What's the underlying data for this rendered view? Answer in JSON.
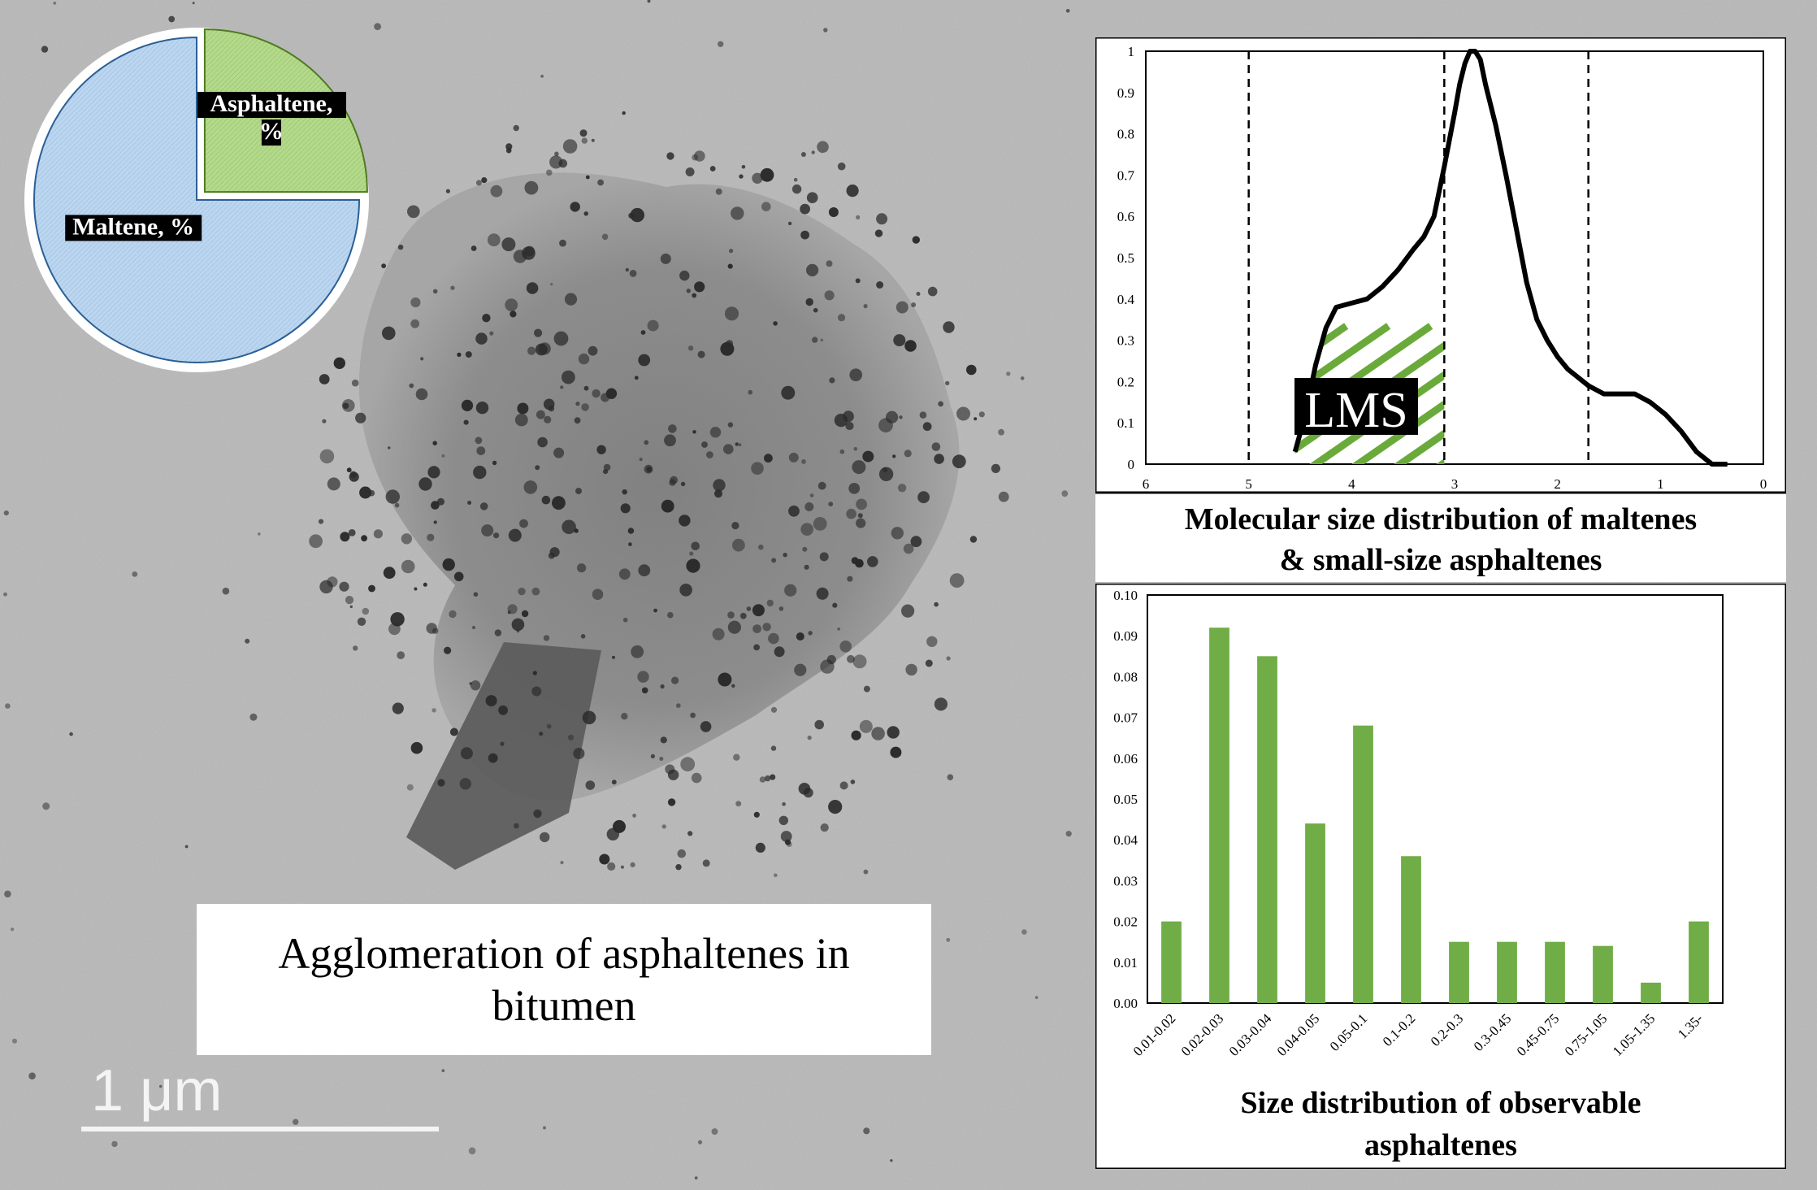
{
  "pie": {
    "slices": [
      {
        "label_lines": [
          "Asphaltene,",
          "%"
        ],
        "value": 25,
        "color": "#b5d98c",
        "edge": "#4f7a1f"
      },
      {
        "label_lines": [
          "Maltene, %"
        ],
        "value": 75,
        "color": "#bcd6f0",
        "edge": "#2b5f96"
      }
    ]
  },
  "caption": "Agglomeration of asphaltenes in bitumen",
  "scale_bar": {
    "label": "1 μm"
  },
  "chart_data": [
    {
      "type": "line",
      "xlabel_lines": [
        "Molecular size distribution of maltenes",
        "& small-size asphaltenes"
      ],
      "xlim": [
        6,
        0
      ],
      "ylim": [
        0,
        1
      ],
      "x_ticks": [
        "6",
        "5",
        "4",
        "3",
        "2",
        "1",
        "0"
      ],
      "y_ticks": [
        "0",
        "0.1",
        "0.2",
        "0.3",
        "0.4",
        "0.5",
        "0.6",
        "0.7",
        "0.8",
        "0.9",
        "1"
      ],
      "vlines": [
        5,
        3.1,
        1.7
      ],
      "shaded_region": {
        "x": [
          5,
          3.1
        ],
        "label": "LMS",
        "color": "#6aaa3a"
      },
      "series": [
        {
          "x": [
            4.55,
            4.45,
            4.35,
            4.25,
            4.15,
            4.0,
            3.85,
            3.7,
            3.55,
            3.4,
            3.3,
            3.2,
            3.1,
            3.0,
            2.95,
            2.9,
            2.85,
            2.8,
            2.75,
            2.7,
            2.6,
            2.5,
            2.4,
            2.3,
            2.2,
            2.1,
            2.0,
            1.9,
            1.8,
            1.7,
            1.55,
            1.4,
            1.25,
            1.1,
            0.95,
            0.8,
            0.65,
            0.5,
            0.35
          ],
          "y": [
            0.03,
            0.12,
            0.24,
            0.33,
            0.38,
            0.39,
            0.4,
            0.43,
            0.47,
            0.52,
            0.55,
            0.6,
            0.72,
            0.85,
            0.92,
            0.97,
            1.0,
            1.0,
            0.98,
            0.92,
            0.82,
            0.7,
            0.57,
            0.44,
            0.35,
            0.3,
            0.26,
            0.23,
            0.21,
            0.19,
            0.17,
            0.17,
            0.17,
            0.15,
            0.12,
            0.08,
            0.03,
            0.0,
            0.0
          ],
          "color": "#000000"
        }
      ]
    },
    {
      "type": "bar",
      "xlabel_lines": [
        "Size distribution of observable",
        "asphaltenes"
      ],
      "ylim": [
        0,
        0.1
      ],
      "y_ticks": [
        "0.00",
        "0.01",
        "0.02",
        "0.03",
        "0.04",
        "0.05",
        "0.06",
        "0.07",
        "0.08",
        "0.09",
        "0.10"
      ],
      "categories": [
        "0.01-0.02",
        "0.02-0.03",
        "0.03-0.04",
        "0.04-0.05",
        "0.05-0.1",
        "0.1-0.2",
        "0.2-0.3",
        "0.3-0.45",
        "0.45-0.75",
        "0.75-1.05",
        "1.05-1.35",
        "1.35-"
      ],
      "values": [
        0.02,
        0.092,
        0.085,
        0.044,
        0.068,
        0.036,
        0.015,
        0.015,
        0.015,
        0.014,
        0.005,
        0.02
      ],
      "color": "#70ad47"
    }
  ]
}
